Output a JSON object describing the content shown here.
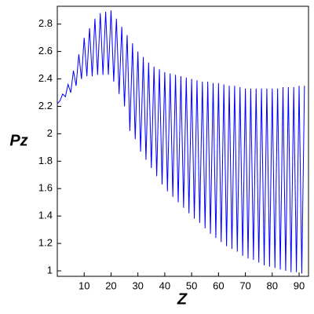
{
  "chart_data": {
    "type": "line",
    "xlabel": "Z",
    "ylabel": "Pz",
    "color": "#0000ff",
    "x": [
      0,
      1,
      2,
      3,
      4,
      5,
      6,
      7,
      8,
      9,
      10,
      11,
      12,
      13,
      14,
      15,
      16,
      17,
      18,
      19,
      20,
      21,
      22,
      23,
      24,
      25,
      26,
      27,
      28,
      29,
      30,
      31,
      32,
      33,
      34,
      35,
      36,
      37,
      38,
      39,
      40,
      41,
      42,
      43,
      44,
      45,
      46,
      47,
      48,
      49,
      50,
      51,
      52,
      53,
      54,
      55,
      56,
      57,
      58,
      59,
      60,
      61,
      62,
      63,
      64,
      65,
      66,
      67,
      68,
      69,
      70,
      71,
      72,
      73,
      74,
      75,
      76,
      77,
      78,
      79,
      80,
      81,
      82,
      83,
      84,
      85,
      86,
      87,
      88,
      89,
      90,
      91,
      92
    ],
    "values": [
      2.22,
      2.24,
      2.29,
      2.27,
      2.36,
      2.3,
      2.46,
      2.35,
      2.58,
      2.4,
      2.7,
      2.42,
      2.77,
      2.42,
      2.84,
      2.43,
      2.88,
      2.43,
      2.89,
      2.43,
      2.9,
      2.38,
      2.84,
      2.29,
      2.78,
      2.2,
      2.72,
      2.02,
      2.66,
      1.96,
      2.6,
      1.87,
      2.56,
      1.81,
      2.52,
      1.75,
      2.49,
      1.69,
      2.47,
      1.63,
      2.45,
      1.58,
      2.44,
      1.54,
      2.43,
      1.5,
      2.42,
      1.46,
      2.41,
      1.42,
      2.4,
      1.38,
      2.39,
      1.35,
      2.38,
      1.31,
      2.38,
      1.27,
      2.37,
      1.24,
      2.37,
      1.21,
      2.36,
      1.18,
      2.35,
      1.16,
      2.35,
      1.14,
      2.34,
      1.11,
      2.33,
      1.09,
      2.33,
      1.08,
      2.33,
      1.06,
      2.33,
      1.04,
      2.33,
      1.03,
      2.33,
      1.02,
      2.33,
      1.01,
      2.34,
      1.0,
      2.34,
      0.99,
      2.34,
      0.99,
      2.35,
      0.98,
      2.35
    ],
    "xlim": [
      0,
      93.5
    ],
    "ylim": [
      0.96,
      2.93
    ],
    "xticks": [
      10,
      20,
      30,
      40,
      50,
      60,
      70,
      80,
      90
    ],
    "yticks": [
      1,
      1.2,
      1.4,
      1.6,
      1.8,
      2,
      2.2,
      2.4,
      2.6,
      2.8
    ]
  }
}
